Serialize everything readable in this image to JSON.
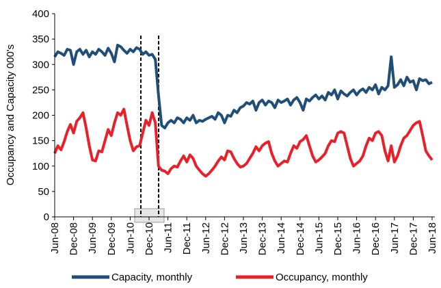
{
  "chart_data": {
    "type": "line",
    "ylabel": "Occupancy and Capacity 000's",
    "categories": [
      "Jun-08",
      null,
      null,
      null,
      null,
      null,
      "Dec-08",
      null,
      null,
      null,
      null,
      null,
      "Jun-09",
      null,
      null,
      null,
      null,
      null,
      "Dec-09",
      null,
      null,
      null,
      null,
      null,
      "Jun-10",
      null,
      null,
      null,
      null,
      null,
      "Dec-10",
      null,
      null,
      null,
      null,
      null,
      "Jun-11",
      null,
      null,
      null,
      null,
      null,
      "Dec-11",
      null,
      null,
      null,
      null,
      null,
      "Jun-12",
      null,
      null,
      null,
      null,
      null,
      "Dec-12",
      null,
      null,
      null,
      null,
      null,
      "Jun-13",
      null,
      null,
      null,
      null,
      null,
      "Dec-13",
      null,
      null,
      null,
      null,
      null,
      "Jun-14",
      null,
      null,
      null,
      null,
      null,
      "Dec-14",
      null,
      null,
      null,
      null,
      null,
      "Jun-15",
      null,
      null,
      null,
      null,
      null,
      "Dec-15",
      null,
      null,
      null,
      null,
      null,
      "Jun-16",
      null,
      null,
      null,
      null,
      null,
      "Dec-16",
      null,
      null,
      null,
      null,
      null,
      "Jun-17",
      null,
      null,
      null,
      null,
      null,
      "Dec-17",
      null,
      null,
      null,
      null,
      null,
      "Jun-18"
    ],
    "series": [
      {
        "name": "Capacity, monthly",
        "color": "#1f4e79",
        "values": [
          315,
          325,
          322,
          318,
          330,
          328,
          300,
          325,
          330,
          320,
          328,
          315,
          325,
          320,
          330,
          325,
          318,
          332,
          322,
          305,
          338,
          335,
          328,
          322,
          330,
          325,
          333,
          330,
          320,
          325,
          318,
          320,
          310,
          240,
          180,
          175,
          185,
          190,
          185,
          195,
          192,
          185,
          195,
          190,
          200,
          185,
          190,
          188,
          192,
          195,
          198,
          192,
          205,
          200,
          185,
          200,
          198,
          210,
          205,
          215,
          218,
          225,
          222,
          228,
          210,
          225,
          230,
          220,
          228,
          225,
          215,
          230,
          225,
          228,
          232,
          220,
          230,
          235,
          225,
          210,
          232,
          228,
          235,
          240,
          232,
          238,
          230,
          245,
          240,
          250,
          232,
          248,
          242,
          238,
          245,
          250,
          240,
          248,
          252,
          245,
          255,
          250,
          260,
          242,
          255,
          250,
          258,
          315,
          255,
          260,
          270,
          258,
          275,
          265,
          268,
          250,
          272,
          268,
          270,
          262,
          265
        ]
      },
      {
        "name": "Occupancy, monthly",
        "color": "#e8202a",
        "values": [
          125,
          140,
          132,
          148,
          168,
          182,
          165,
          188,
          195,
          205,
          175,
          140,
          112,
          110,
          130,
          128,
          150,
          172,
          160,
          185,
          205,
          200,
          212,
          180,
          150,
          130,
          138,
          140,
          165,
          190,
          180,
          205,
          185,
          100,
          92,
          90,
          85,
          95,
          100,
          98,
          110,
          120,
          108,
          122,
          115,
          100,
          92,
          85,
          80,
          85,
          92,
          100,
          110,
          118,
          112,
          130,
          128,
          115,
          105,
          98,
          100,
          105,
          115,
          125,
          138,
          130,
          140,
          145,
          148,
          125,
          110,
          100,
          105,
          110,
          108,
          125,
          140,
          135,
          148,
          152,
          160,
          140,
          120,
          108,
          112,
          118,
          125,
          140,
          150,
          148,
          165,
          168,
          165,
          140,
          115,
          100,
          105,
          110,
          120,
          140,
          155,
          150,
          165,
          168,
          160,
          130,
          110,
          140,
          108,
          120,
          140,
          155,
          160,
          170,
          180,
          185,
          188,
          160,
          130,
          120,
          112
        ]
      }
    ],
    "ylim": [
      0,
      400
    ],
    "yticks": [
      0,
      50,
      100,
      150,
      200,
      250,
      300,
      350,
      400
    ]
  }
}
